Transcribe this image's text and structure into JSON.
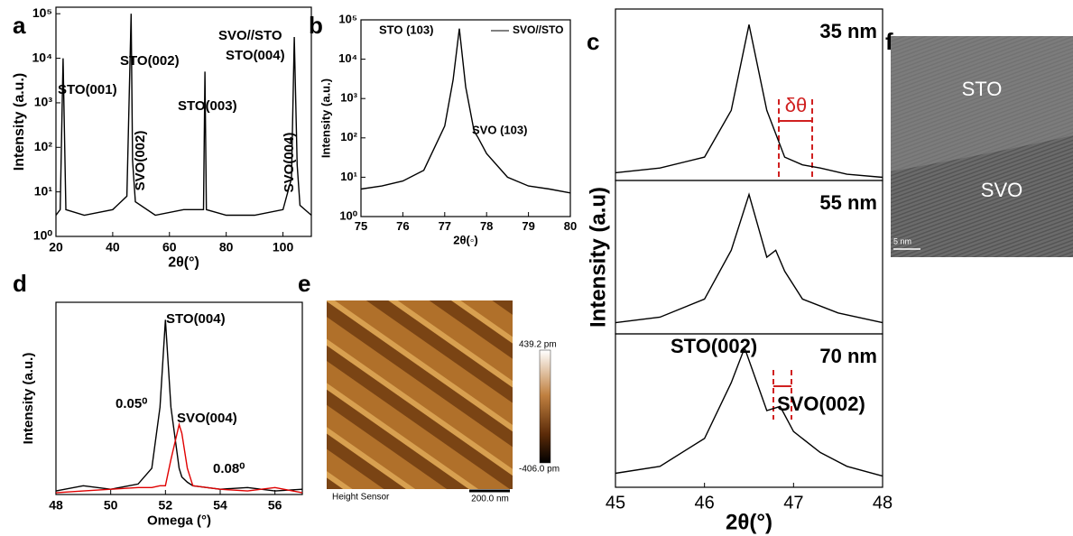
{
  "chart_data": [
    {
      "type": "line",
      "panel": "a",
      "xlabel": "2θ(°)",
      "ylabel": "Intensity (a.u.)",
      "log_y": true,
      "xlim": [
        20,
        110
      ],
      "ylim": [
        1,
        140000
      ],
      "xticks": [
        20,
        40,
        60,
        80,
        100
      ],
      "yticks": [
        {
          "value": 1,
          "label": "10⁰"
        },
        {
          "value": 10,
          "label": "10¹"
        },
        {
          "value": 100,
          "label": "10²"
        },
        {
          "value": 1000,
          "label": "10³"
        },
        {
          "value": 10000,
          "label": "10⁴"
        },
        {
          "value": 100000,
          "label": "10⁵"
        }
      ],
      "x": [
        20,
        21.5,
        22.5,
        23.5,
        30,
        40,
        45,
        46.5,
        47,
        48,
        55,
        65,
        72,
        72.5,
        73,
        80,
        90,
        100,
        103,
        104,
        105,
        106,
        110
      ],
      "series": [
        {
          "color": "#000000",
          "values": [
            3,
            4,
            10000,
            4,
            3,
            4,
            8,
            100000,
            50,
            6,
            3,
            4,
            4,
            5000,
            4,
            3,
            3,
            4,
            20,
            30000,
            40,
            5,
            3
          ]
        }
      ],
      "annotations": [
        "STO(001)",
        "STO(002)",
        "SVO(002)",
        "STO(003)",
        "SVO//STO",
        "STO(004)",
        "SVO(004)"
      ]
    },
    {
      "type": "line",
      "panel": "b",
      "xlabel": "2θ(◦)",
      "ylabel": "Intensity (a.u.)",
      "log_y": true,
      "xlim": [
        75,
        80
      ],
      "ylim": [
        1,
        100000
      ],
      "xticks": [
        75,
        76,
        77,
        78,
        79,
        80
      ],
      "yticks": [
        {
          "value": 1,
          "label": "10⁰"
        },
        {
          "value": 10,
          "label": "10¹"
        },
        {
          "value": 100,
          "label": "10²"
        },
        {
          "value": 1000,
          "label": "10³"
        },
        {
          "value": 10000,
          "label": "10⁴"
        },
        {
          "value": 100000,
          "label": "10⁵"
        }
      ],
      "x": [
        75,
        75.5,
        76,
        76.5,
        77,
        77.2,
        77.35,
        77.5,
        77.7,
        77.8,
        78,
        78.5,
        79,
        79.5,
        80
      ],
      "series": [
        {
          "name": "SVO//STO",
          "color": "#000000",
          "values": [
            5,
            6,
            8,
            15,
            200,
            3000,
            60000,
            2000,
            150,
            100,
            40,
            10,
            6,
            5,
            4
          ]
        }
      ],
      "annotations": [
        "STO (103)",
        "SVO (103)"
      ]
    },
    {
      "type": "line",
      "panel": "c",
      "xlim": [
        45,
        48
      ],
      "ylim": [
        0,
        110
      ],
      "x": [
        45,
        45.5,
        46,
        46.3,
        46.5,
        46.7,
        46.9,
        47.1,
        47.3,
        47.6,
        48
      ],
      "series": [
        {
          "name": "35 nm",
          "color": "#000000",
          "values": [
            5,
            8,
            15,
            45,
            100,
            45,
            15,
            10,
            8,
            4,
            2
          ]
        }
      ],
      "annotations": [
        "δθ"
      ]
    },
    {
      "type": "line",
      "xlim": [
        45,
        48
      ],
      "ylim": [
        0,
        110
      ],
      "ylabel": "Intensity (a.u)",
      "x": [
        45,
        45.5,
        46,
        46.3,
        46.5,
        46.7,
        46.8,
        46.9,
        47.1,
        47.5,
        48
      ],
      "series": [
        {
          "name": "55 nm",
          "color": "#000000",
          "values": [
            8,
            12,
            25,
            60,
            100,
            55,
            60,
            45,
            25,
            15,
            8
          ]
        }
      ]
    },
    {
      "type": "line",
      "xlim": [
        45,
        48
      ],
      "ylim": [
        0,
        110
      ],
      "xlabel": "2θ(°)",
      "xticks": [
        45,
        46,
        47,
        48
      ],
      "x": [
        45,
        45.5,
        46,
        46.3,
        46.45,
        46.7,
        46.85,
        47,
        47.3,
        47.6,
        48
      ],
      "series": [
        {
          "name": "70 nm",
          "color": "#000000",
          "values": [
            10,
            15,
            35,
            75,
            100,
            55,
            58,
            40,
            25,
            15,
            8
          ]
        }
      ],
      "annotations": [
        "STO(002)",
        "SVO(002)"
      ]
    },
    {
      "type": "line",
      "panel": "d",
      "xlabel": "Omega (°)",
      "ylabel": "Intensity (a.u.)",
      "xlim": [
        48,
        57
      ],
      "ylim": [
        0,
        110
      ],
      "xticks": [
        48,
        50,
        52,
        54,
        56
      ],
      "x": [
        48,
        49,
        50,
        51,
        51.5,
        51.8,
        52,
        52.2,
        52.5,
        52.6,
        52.8,
        53,
        54,
        55,
        56,
        57
      ],
      "series": [
        {
          "color": "#000000",
          "values": [
            2,
            5,
            3,
            6,
            15,
            50,
            100,
            50,
            15,
            10,
            7,
            5,
            3,
            4,
            2,
            3
          ]
        },
        {
          "color": "#e00000",
          "values": [
            1,
            2,
            3,
            4,
            4,
            5,
            5,
            20,
            40,
            35,
            15,
            5,
            3,
            2,
            4,
            1
          ]
        }
      ],
      "annotations": [
        "STO(004)",
        "0.05⁰",
        "SVO(004)",
        "0.08⁰"
      ]
    }
  ],
  "images": {
    "e": {
      "panel": "e",
      "colorbar_max": "439.2 pm",
      "colorbar_min": "-406.0 pm",
      "caption": "Height Sensor",
      "scale_bar": "200.0 nm"
    },
    "f": {
      "panel": "f",
      "top_layer": "STO",
      "bottom_layer": "SVO",
      "scale_bar": "5 nm"
    }
  }
}
